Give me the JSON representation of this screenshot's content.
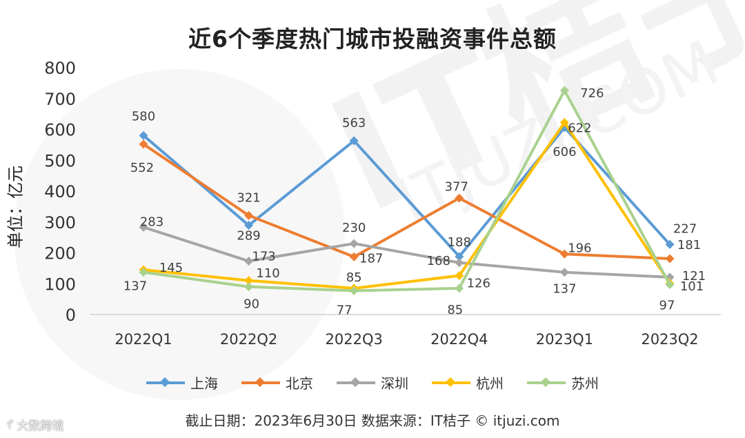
{
  "chart_data": {
    "type": "line",
    "title": "近6个季度热门城市投融资事件总额",
    "xlabel": "",
    "ylabel": "单位：亿元",
    "ylim": [
      0,
      800
    ],
    "yticks": [
      "0",
      "100",
      "200",
      "300",
      "400",
      "500",
      "600",
      "700",
      "800"
    ],
    "categories": [
      "2022Q1",
      "2022Q2",
      "2022Q3",
      "2022Q4",
      "2023Q1",
      "2023Q2"
    ],
    "legend_position": "bottom",
    "series": [
      {
        "name": "上海",
        "color": "#5b9bd5",
        "values": [
          580,
          289,
          563,
          188,
          606,
          227
        ]
      },
      {
        "name": "北京",
        "color": "#ed7d31",
        "values": [
          552,
          321,
          187,
          377,
          196,
          181
        ]
      },
      {
        "name": "深圳",
        "color": "#a5a5a5",
        "values": [
          283,
          173,
          230,
          168,
          137,
          121
        ]
      },
      {
        "name": "杭州",
        "color": "#ffc000",
        "values": [
          145,
          110,
          85,
          126,
          622,
          101
        ]
      },
      {
        "name": "苏州",
        "color": "#a9d18e",
        "values": [
          137,
          90,
          77,
          85,
          726,
          97
        ]
      }
    ],
    "grid": false
  },
  "footer": {
    "note": "截止日期：2023年6月30日   数据来源：IT桔子 © itjuzi.com"
  },
  "brand": {
    "icon": "ꀈ",
    "label": "大数跨境"
  },
  "watermark": {
    "text": "IT桔子",
    "url": "ITJUZI.COM"
  }
}
